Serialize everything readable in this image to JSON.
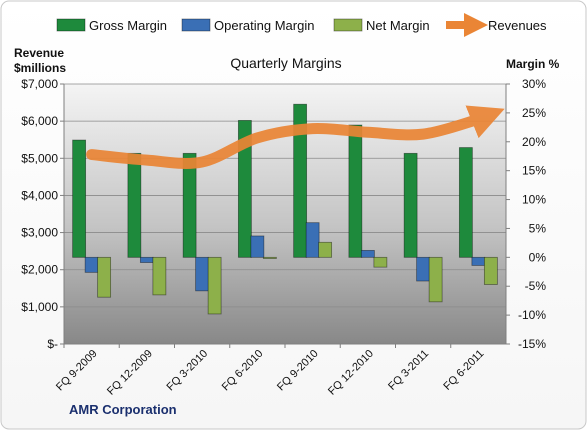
{
  "chart_data": {
    "type": "bar",
    "title": "Quarterly Margins",
    "company": "AMR Corporation",
    "left_axis_label": [
      "Revenue",
      "$millions"
    ],
    "right_axis_label": "Margin %",
    "categories": [
      "FQ 9-2009",
      "FQ 12-2009",
      "FQ 3-2010",
      "FQ 6-2010",
      "FQ 9-2010",
      "FQ 12-2010",
      "FQ 3-2011",
      "FQ 6-2011"
    ],
    "left_axis": {
      "min": 0,
      "max": 7000,
      "step": 1000,
      "tick_labels": [
        "$-",
        "$1,000",
        "$2,000",
        "$3,000",
        "$4,000",
        "$5,000",
        "$6,000",
        "$7,000"
      ]
    },
    "right_axis": {
      "min": -15,
      "max": 30,
      "step": 5,
      "tick_labels": [
        "-15%",
        "-10%",
        "-5%",
        "0%",
        "5%",
        "10%",
        "15%",
        "20%",
        "25%",
        "30%"
      ]
    },
    "series": [
      {
        "name": "Gross Margin",
        "axis": "right",
        "color": "#1e8a3c",
        "values": [
          20.3,
          18.0,
          18.0,
          23.7,
          26.5,
          22.9,
          18.0,
          19.0
        ]
      },
      {
        "name": "Operating Margin",
        "axis": "right",
        "color": "#3a6fb5",
        "values": [
          -2.6,
          -0.9,
          -5.8,
          3.7,
          6.0,
          1.2,
          -4.1,
          -1.4
        ]
      },
      {
        "name": "Net Margin",
        "axis": "right",
        "color": "#8db04a",
        "values": [
          -6.9,
          -6.5,
          -9.8,
          -0.1,
          2.6,
          -1.7,
          -7.7,
          -4.7
        ]
      },
      {
        "name": "Revenues",
        "axis": "left",
        "color": "#ea8535",
        "type": "line",
        "values": [
          5100,
          4950,
          4900,
          5550,
          5800,
          5700,
          5650,
          6050
        ]
      }
    ],
    "grid": true,
    "legend_position": "top"
  }
}
